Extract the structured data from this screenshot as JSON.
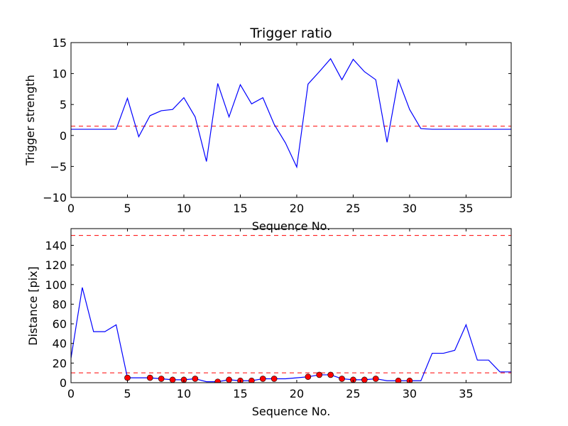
{
  "chart_data": [
    {
      "type": "line",
      "title": "Trigger ratio",
      "xlabel": "Sequence No.",
      "ylabel": "Trigger strength",
      "xlim": [
        0,
        39
      ],
      "ylim": [
        -10,
        15
      ],
      "xticks": [
        0,
        5,
        10,
        15,
        20,
        25,
        30,
        35
      ],
      "yticks": [
        -10,
        -5,
        0,
        5,
        10,
        15
      ],
      "xtick_labels": [
        "0",
        "5",
        "10",
        "15",
        "20",
        "25",
        "30",
        "35"
      ],
      "ytick_labels": [
        "−10",
        "−5",
        "0",
        "5",
        "10",
        "15"
      ],
      "grid": false,
      "series": [
        {
          "color": "#0000ff",
          "style": "solid",
          "x": [
            0,
            1,
            2,
            3,
            4,
            5,
            6,
            7,
            8,
            9,
            10,
            11,
            12,
            13,
            14,
            15,
            16,
            17,
            18,
            19,
            20,
            21,
            22,
            23,
            24,
            25,
            26,
            27,
            28,
            29,
            30,
            31,
            32,
            33,
            34,
            35,
            36,
            37,
            38,
            39
          ],
          "y": [
            1.0,
            1.0,
            1.0,
            1.0,
            1.0,
            6.0,
            -0.2,
            3.2,
            4.0,
            4.2,
            6.1,
            3.0,
            -4.2,
            8.4,
            3.0,
            8.2,
            5.1,
            6.1,
            1.8,
            -1.2,
            -5.1,
            8.3,
            10.3,
            12.4,
            9.0,
            12.3,
            10.3,
            9.0,
            -1.1,
            9.0,
            4.2,
            1.1,
            1.0,
            1.0,
            1.0,
            1.0,
            1.0,
            1.0,
            1.0,
            1.0
          ]
        }
      ],
      "hlines": [
        {
          "y": 1.5,
          "color": "#ff0000",
          "style": "dashed"
        }
      ]
    },
    {
      "type": "line",
      "title": "",
      "xlabel": "Sequence No.",
      "ylabel": "Distance [pix]",
      "xlim": [
        0,
        39
      ],
      "ylim": [
        0,
        157
      ],
      "xticks": [
        0,
        5,
        10,
        15,
        20,
        25,
        30,
        35
      ],
      "yticks": [
        0,
        20,
        40,
        60,
        80,
        100,
        120,
        140
      ],
      "xtick_labels": [
        "0",
        "5",
        "10",
        "15",
        "20",
        "25",
        "30",
        "35"
      ],
      "ytick_labels": [
        "0",
        "20",
        "40",
        "60",
        "80",
        "100",
        "120",
        "140"
      ],
      "grid": false,
      "series": [
        {
          "color": "#0000ff",
          "style": "solid",
          "x": [
            0,
            1,
            2,
            3,
            4,
            5,
            6,
            7,
            8,
            9,
            10,
            11,
            12,
            13,
            14,
            15,
            16,
            17,
            18,
            19,
            20,
            21,
            22,
            23,
            24,
            25,
            26,
            27,
            28,
            29,
            30,
            31,
            32,
            33,
            34,
            35,
            36,
            37,
            38,
            39
          ],
          "y": [
            25,
            97,
            52,
            52,
            59,
            5,
            5,
            5,
            4,
            3,
            3,
            4,
            1,
            1,
            3,
            2,
            2,
            4,
            4,
            4,
            5,
            6,
            8,
            8,
            4,
            3,
            3,
            4,
            2,
            2,
            2,
            2,
            30,
            30,
            33,
            59,
            23,
            23,
            11,
            11
          ]
        }
      ],
      "markers": {
        "color": "#ff0000",
        "x": [
          5,
          7,
          8,
          9,
          10,
          11,
          13,
          14,
          15,
          16,
          17,
          18,
          21,
          22,
          23,
          24,
          25,
          26,
          27,
          29,
          30
        ],
        "y": [
          5,
          5,
          4,
          3,
          3,
          4,
          1,
          3,
          2,
          2,
          4,
          4,
          6,
          8,
          8,
          4,
          3,
          3,
          4,
          2,
          2
        ]
      },
      "hlines": [
        {
          "y": 10,
          "color": "#ff0000",
          "style": "dashed"
        },
        {
          "y": 150,
          "color": "#ff0000",
          "style": "dashed"
        }
      ]
    }
  ]
}
